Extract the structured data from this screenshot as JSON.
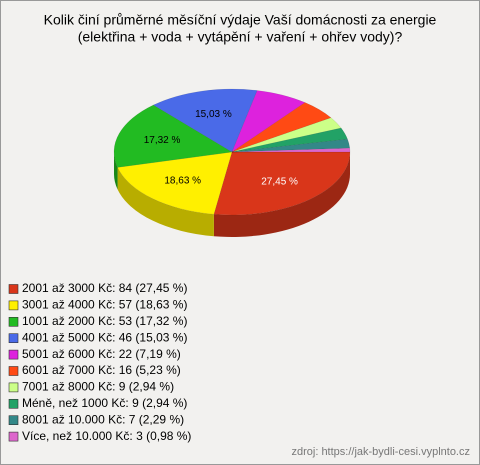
{
  "chart_data": {
    "type": "pie",
    "title": "Kolik činí průměrné měsíční výdaje Vaší domácnosti za energie",
    "subtitle": "(elektřina + voda + vytápění + vaření + ohřev vody)?",
    "categories": [
      "2001 až 3000 Kč: 84 (27,45 %)",
      "3001 až 4000 Kč: 57 (18,63 %)",
      "1001 až 2000 Kč: 53 (17,32 %)",
      "4001 až 5000 Kč: 46 (15,03 %)",
      "5001 až 6000 Kč: 22 (7,19 %)",
      "6001 až 7000 Kč: 16 (5,23 %)",
      "7001 až 8000 Kč: 9 (2,94 %)",
      "Méně, než 1000 Kč: 9 (2,94 %)",
      "8001 až 10.000 Kč: 7 (2,29 %)",
      "Více, než 10.000 Kč: 3 (0,98 %)"
    ],
    "values": [
      27.45,
      18.63,
      17.32,
      15.03,
      7.19,
      5.23,
      2.94,
      2.94,
      2.29,
      0.98
    ],
    "value_labels": [
      "27,45 %",
      "18,63 %",
      "17,32 %",
      "15,03 %",
      null,
      null,
      null,
      null,
      null,
      null
    ],
    "colors": [
      "#d9361a",
      "#fff000",
      "#22bb22",
      "#4a6ae8",
      "#dd22dd",
      "#ff4a14",
      "#ccff88",
      "#22a266",
      "#338888",
      "#dd66cc"
    ],
    "source": "zdroj: https://jak-bydli-cesi.vyplnto.cz"
  }
}
